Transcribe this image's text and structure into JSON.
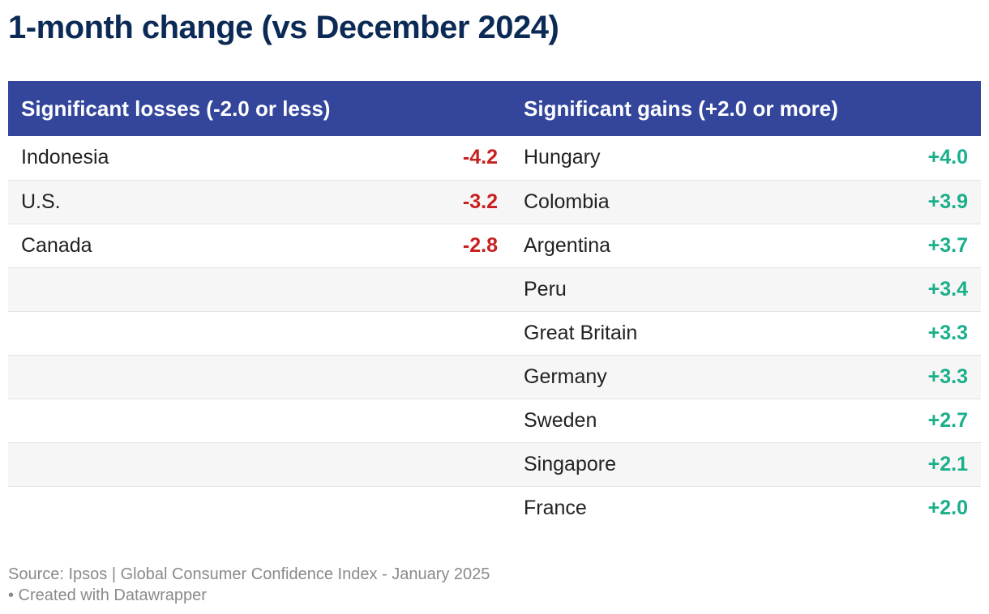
{
  "chart_data": {
    "type": "table",
    "title": "1-month change (vs December 2024)",
    "columns": [
      "Significant losses (-2.0 or less)",
      "Significant gains (+2.0 or more)"
    ],
    "losses": [
      {
        "country": "Indonesia",
        "value": "-4.2"
      },
      {
        "country": "U.S.",
        "value": "-3.2"
      },
      {
        "country": "Canada",
        "value": "-2.8"
      }
    ],
    "gains": [
      {
        "country": "Hungary",
        "value": "+4.0"
      },
      {
        "country": "Colombia",
        "value": "+3.9"
      },
      {
        "country": "Argentina",
        "value": "+3.7"
      },
      {
        "country": "Peru",
        "value": "+3.4"
      },
      {
        "country": "Great Britain",
        "value": "+3.3"
      },
      {
        "country": "Germany",
        "value": "+3.3"
      },
      {
        "country": "Sweden",
        "value": "+2.7"
      },
      {
        "country": "Singapore",
        "value": "+2.1"
      },
      {
        "country": "France",
        "value": "+2.0"
      }
    ],
    "colors": {
      "header_bg": "#33469c",
      "title": "#0b2a55",
      "loss": "#c8201f",
      "gain": "#1aaf8b"
    }
  },
  "footer": {
    "source": "Source: Ipsos | Global Consumer Confidence Index - January 2025",
    "credit": "• Created with Datawrapper"
  }
}
